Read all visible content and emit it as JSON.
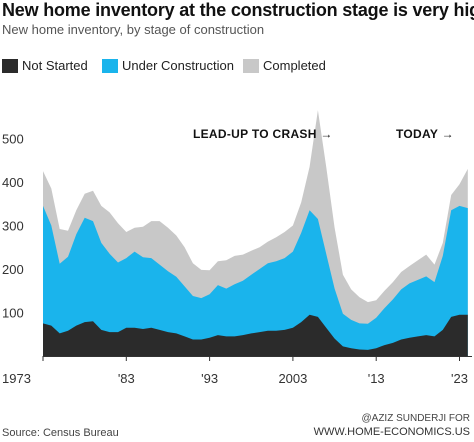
{
  "header": {
    "title": "New home inventory at the construction stage is very high",
    "subtitle": "New home inventory, by stage of construction"
  },
  "legend": [
    {
      "label": "Not Started",
      "color": "#2b2b2b"
    },
    {
      "label": "Under Construction",
      "color": "#1ab4ec"
    },
    {
      "label": "Completed",
      "color": "#c8c8c8"
    }
  ],
  "annotations": {
    "lead_up": "LEAD-UP TO CRASH →",
    "today": "TODAY →"
  },
  "footer": {
    "source": "Source: Census Bureau",
    "credit_line1": "@AZIZ SUNDERJI FOR",
    "credit_line2": "WWW.HOME-ECONOMICS.US"
  },
  "chart_data": {
    "type": "area",
    "stacked": true,
    "unit": "thousands",
    "x_tick_labels": [
      "1973",
      "'83",
      "'93",
      "2003",
      "'13",
      "'23"
    ],
    "y_tick_labels": [
      "100",
      "200",
      "300",
      "400",
      "500"
    ],
    "xlim": [
      1973,
      2024.5
    ],
    "ylim": [
      0,
      600
    ],
    "x": [
      1973,
      1974,
      1975,
      1976,
      1977,
      1978,
      1979,
      1980,
      1981,
      1982,
      1983,
      1984,
      1985,
      1986,
      1987,
      1988,
      1989,
      1990,
      1991,
      1992,
      1993,
      1994,
      1995,
      1996,
      1997,
      1998,
      1999,
      2000,
      2001,
      2002,
      2003,
      2004,
      2005,
      2006,
      2007,
      2008,
      2009,
      2010,
      2011,
      2012,
      2013,
      2014,
      2015,
      2016,
      2017,
      2018,
      2019,
      2020,
      2021,
      2022,
      2023,
      2024
    ],
    "series": [
      {
        "name": "Not Started",
        "color": "#2b2b2b",
        "values": [
          75,
          70,
          52,
          58,
          70,
          78,
          80,
          60,
          55,
          55,
          65,
          65,
          62,
          65,
          60,
          55,
          52,
          45,
          38,
          38,
          42,
          48,
          45,
          45,
          48,
          52,
          55,
          58,
          58,
          60,
          65,
          78,
          95,
          90,
          65,
          40,
          22,
          18,
          15,
          14,
          18,
          25,
          30,
          38,
          42,
          45,
          48,
          45,
          60,
          90,
          95,
          95
        ]
      },
      {
        "name": "Under Construction",
        "color": "#1ab4ec",
        "values": [
          270,
          230,
          160,
          170,
          210,
          240,
          230,
          200,
          180,
          160,
          160,
          175,
          165,
          160,
          150,
          140,
          130,
          115,
          100,
          95,
          100,
          115,
          110,
          120,
          125,
          135,
          145,
          155,
          160,
          165,
          175,
          205,
          240,
          225,
          170,
          115,
          75,
          65,
          60,
          60,
          70,
          85,
          100,
          115,
          125,
          130,
          135,
          125,
          170,
          245,
          250,
          245
        ]
      },
      {
        "name": "Completed",
        "color": "#c8c8c8",
        "values": [
          80,
          85,
          80,
          60,
          55,
          55,
          70,
          85,
          95,
          90,
          60,
          55,
          70,
          85,
          100,
          100,
          95,
          90,
          75,
          65,
          55,
          55,
          65,
          65,
          60,
          55,
          50,
          50,
          55,
          60,
          60,
          70,
          100,
          250,
          200,
          140,
          90,
          70,
          60,
          50,
          40,
          40,
          40,
          40,
          40,
          45,
          50,
          40,
          30,
          35,
          50,
          90
        ]
      }
    ]
  }
}
